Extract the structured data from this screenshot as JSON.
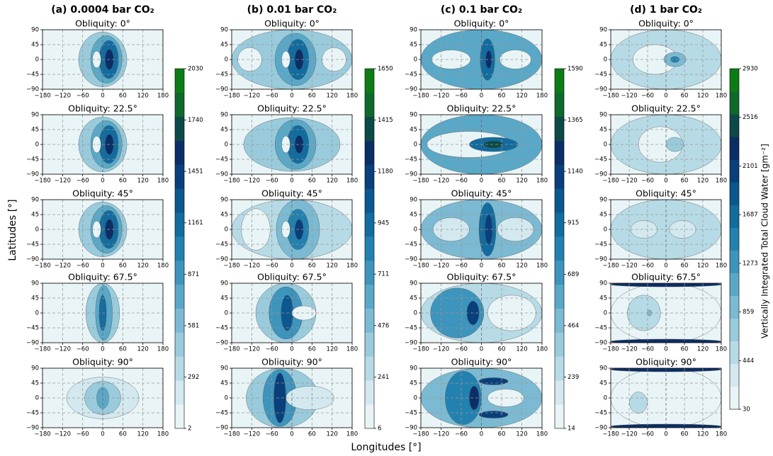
{
  "figure": {
    "xlabel": "Longitudes [°]",
    "ylabel": "Latitudes [°]",
    "colormap": [
      "#e9f4f6",
      "#d3e9ef",
      "#b7dbe6",
      "#99cbdc",
      "#7bbad2",
      "#5aa8c7",
      "#3d94bc",
      "#2381af",
      "#126c9f",
      "#0b578f",
      "#093f7b",
      "#0b2e66",
      "#0c4a47",
      "#0d6a2b",
      "#0b7d14"
    ]
  },
  "chart_data": [
    {
      "type": "contour",
      "title": "(a) 0.0004 bar CO₂",
      "panels": [
        "Obliquity: 0°",
        "Obliquity: 22.5°",
        "Obliquity: 45°",
        "Obliquity: 67.5°",
        "Obliquity: 90°"
      ],
      "xlim": [
        -180,
        180
      ],
      "ylim": [
        -90,
        90
      ],
      "xticks": [
        {
          "value": -180,
          "label": "−180"
        },
        {
          "value": -120,
          "label": "−120"
        },
        {
          "value": -60,
          "label": "−60"
        },
        0,
        60,
        120,
        180
      ],
      "yticks": [
        {
          "value": -90,
          "label": "−90"
        },
        {
          "value": -45,
          "label": "−45"
        },
        0,
        45,
        90
      ],
      "colorbar_lim": [
        2,
        2030
      ],
      "colorbar_ticks": [
        2,
        292,
        581,
        871,
        1161,
        1451,
        1740,
        2030
      ],
      "grid": true
    },
    {
      "type": "contour",
      "title": "(b) 0.01 bar CO₂",
      "panels": [
        "Obliquity: 0°",
        "Obliquity: 22.5°",
        "Obliquity: 45°",
        "Obliquity: 67.5°",
        "Obliquity: 90°"
      ],
      "xlim": [
        -180,
        180
      ],
      "ylim": [
        -90,
        90
      ],
      "xticks": [
        {
          "value": -180,
          "label": "−180"
        },
        {
          "value": -120,
          "label": "−120"
        },
        {
          "value": -60,
          "label": "−60"
        },
        0,
        60,
        120,
        180
      ],
      "yticks": [
        {
          "value": -90,
          "label": "−90"
        },
        {
          "value": -45,
          "label": "−45"
        },
        0,
        45,
        90
      ],
      "colorbar_lim": [
        6,
        1650
      ],
      "colorbar_ticks": [
        6,
        241,
        476,
        711,
        945,
        1180,
        1415,
        1650
      ],
      "grid": true
    },
    {
      "type": "contour",
      "title": "(c) 0.1 bar CO₂",
      "panels": [
        "Obliquity: 0°",
        "Obliquity: 22.5°",
        "Obliquity: 45°",
        "Obliquity: 67.5°",
        "Obliquity: 90°"
      ],
      "xlim": [
        -180,
        180
      ],
      "ylim": [
        -90,
        90
      ],
      "xticks": [
        {
          "value": -180,
          "label": "−180"
        },
        {
          "value": -120,
          "label": "−120"
        },
        {
          "value": -60,
          "label": "−60"
        },
        0,
        60,
        120,
        180
      ],
      "yticks": [
        {
          "value": -90,
          "label": "−90"
        },
        {
          "value": -45,
          "label": "−45"
        },
        0,
        45,
        90
      ],
      "colorbar_lim": [
        14,
        1590
      ],
      "colorbar_ticks": [
        14,
        239,
        464,
        689,
        915,
        1140,
        1365,
        1590
      ],
      "grid": true
    },
    {
      "type": "contour",
      "title": "(d) 1 bar CO₂",
      "panels": [
        "Obliquity: 0°",
        "Obliquity: 22.5°",
        "Obliquity: 45°",
        "Obliquity: 67.5°",
        "Obliquity: 90°"
      ],
      "xlim": [
        -180,
        180
      ],
      "ylim": [
        -90,
        90
      ],
      "xticks": [
        {
          "value": -180,
          "label": "−180"
        },
        {
          "value": -120,
          "label": "−120"
        },
        {
          "value": -60,
          "label": "−60"
        },
        0,
        60,
        120,
        180
      ],
      "yticks": [
        {
          "value": -90,
          "label": "−90"
        },
        {
          "value": -45,
          "label": "−45"
        },
        0,
        45,
        90
      ],
      "colorbar_lim": [
        30,
        2930
      ],
      "colorbar_ticks": [
        30,
        444,
        859,
        1273,
        1687,
        2101,
        2516,
        2930
      ],
      "grid": true,
      "colorbar_label": "Vertically Integrated Total Cloud Water [gm⁻²]"
    }
  ]
}
